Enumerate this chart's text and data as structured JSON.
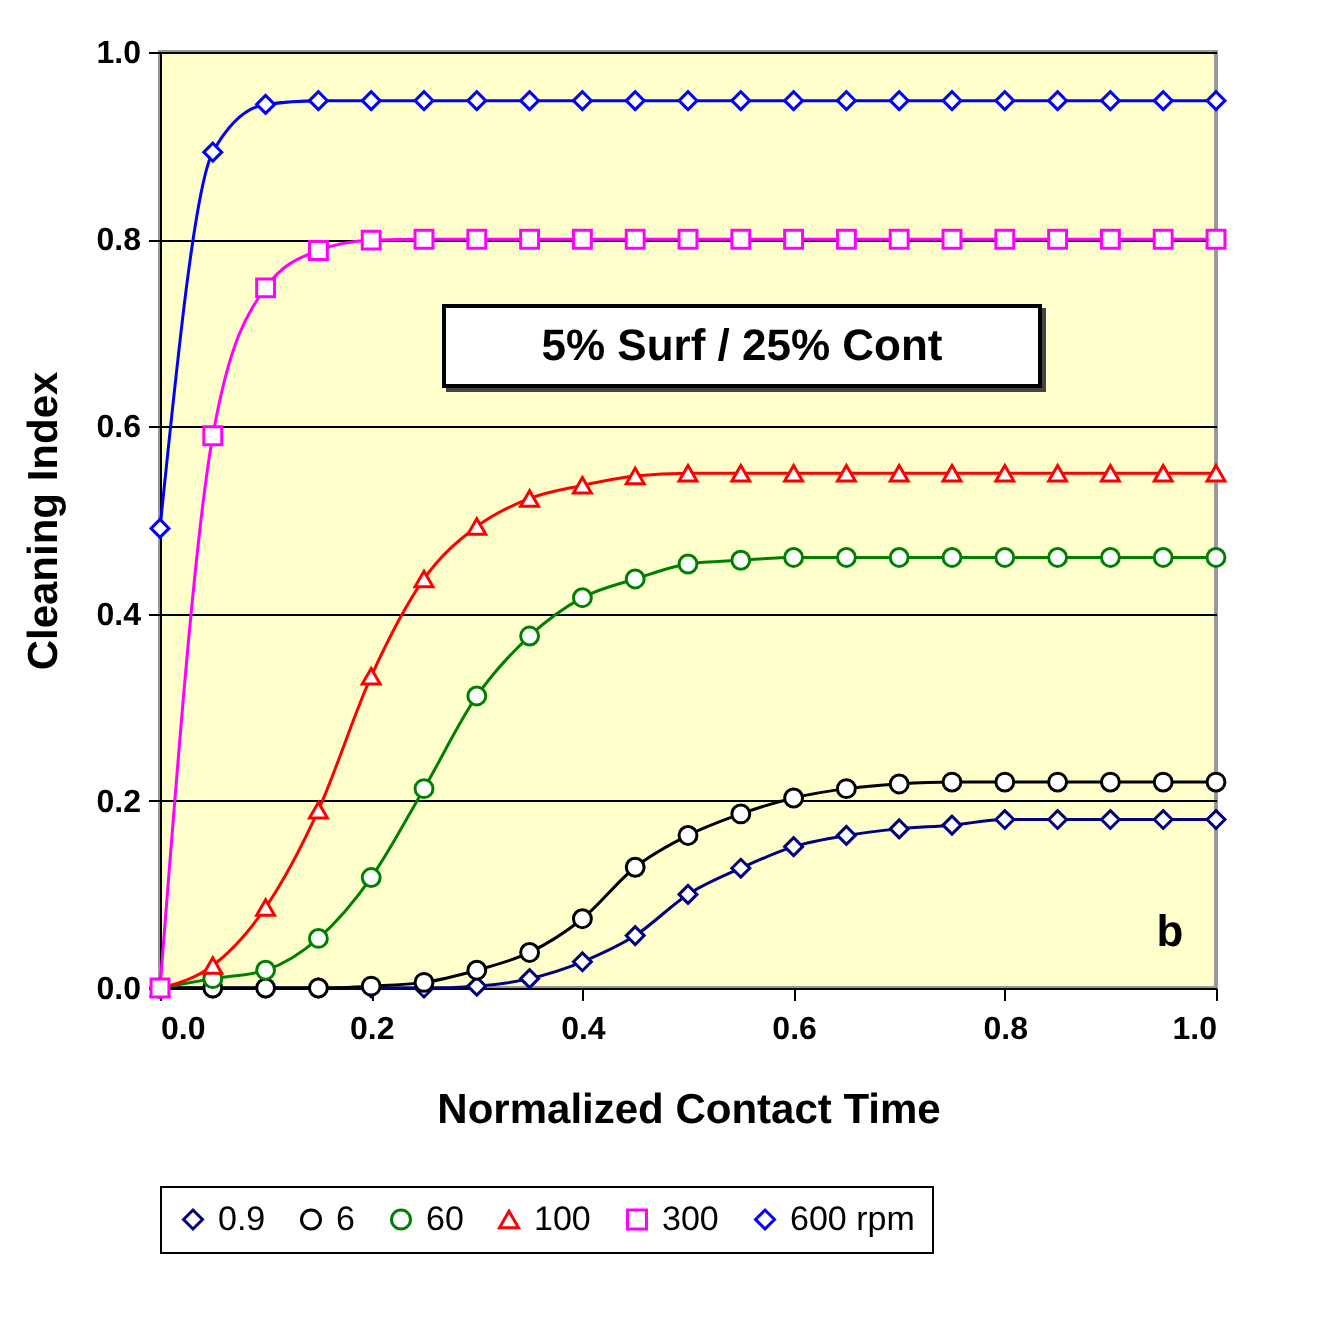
{
  "chart_data": {
    "type": "line",
    "xlabel": "Normalized Contact Time",
    "ylabel": "Cleaning Index",
    "x": [
      0,
      0.05,
      0.1,
      0.15,
      0.2,
      0.25,
      0.3,
      0.35,
      0.4,
      0.45,
      0.5,
      0.55,
      0.6,
      0.65,
      0.7,
      0.75,
      0.8,
      0.85,
      0.9,
      0.95,
      1.0
    ],
    "series": [
      {
        "name": "0.9",
        "color": "#000080",
        "marker": "diamond",
        "values": [
          0,
          0,
          0,
          0,
          0,
          0,
          0.002,
          0.01,
          0.028,
          0.056,
          0.1,
          0.128,
          0.151,
          0.163,
          0.17,
          0.174,
          0.18,
          0.18,
          0.18,
          0.18,
          0.18
        ]
      },
      {
        "name": "6",
        "color": "#000000",
        "marker": "circle",
        "values": [
          0,
          0,
          0,
          0,
          0.002,
          0.006,
          0.019,
          0.038,
          0.074,
          0.129,
          0.163,
          0.186,
          0.203,
          0.213,
          0.218,
          0.22,
          0.22,
          0.22,
          0.22,
          0.22,
          0.22
        ]
      },
      {
        "name": "60",
        "color": "#008000",
        "marker": "circle",
        "values": [
          0,
          0.01,
          0.019,
          0.053,
          0.118,
          0.213,
          0.312,
          0.376,
          0.417,
          0.437,
          0.453,
          0.457,
          0.46,
          0.46,
          0.46,
          0.46,
          0.46,
          0.46,
          0.46,
          0.46,
          0.46
        ]
      },
      {
        "name": "100",
        "color": "#ff0000",
        "marker": "triangle",
        "values": [
          0,
          0.024,
          0.086,
          0.19,
          0.333,
          0.437,
          0.493,
          0.523,
          0.537,
          0.547,
          0.55,
          0.55,
          0.55,
          0.55,
          0.55,
          0.55,
          0.55,
          0.55,
          0.55,
          0.55,
          0.55
        ]
      },
      {
        "name": "300",
        "color": "#ff00ff",
        "marker": "square",
        "values": [
          0,
          0.59,
          0.748,
          0.788,
          0.799,
          0.8,
          0.8,
          0.8,
          0.8,
          0.8,
          0.8,
          0.8,
          0.8,
          0.8,
          0.8,
          0.8,
          0.8,
          0.8,
          0.8,
          0.8,
          0.8
        ]
      },
      {
        "name": "600 rpm",
        "color": "#0000ff",
        "marker": "diamond",
        "values": [
          0.491,
          0.893,
          0.944,
          0.948,
          0.948,
          0.948,
          0.948,
          0.948,
          0.948,
          0.948,
          0.948,
          0.948,
          0.948,
          0.948,
          0.948,
          0.948,
          0.948,
          0.948,
          0.948,
          0.948,
          0.948
        ]
      }
    ],
    "xlim": [
      0,
      1.0
    ],
    "ylim": [
      0,
      1.0
    ],
    "xticks": [
      {
        "value": 0,
        "label": "0.0"
      },
      {
        "value": 0.2,
        "label": "0.2"
      },
      {
        "value": 0.4,
        "label": "0.4"
      },
      {
        "value": 0.6,
        "label": "0.6"
      },
      {
        "value": 0.8,
        "label": "0.8"
      },
      {
        "value": 1.0,
        "label": "1.0"
      }
    ],
    "yticks": [
      {
        "value": 0,
        "label": "0.0"
      },
      {
        "value": 0.2,
        "label": "0.2"
      },
      {
        "value": 0.4,
        "label": "0.4"
      },
      {
        "value": 0.6,
        "label": "0.6"
      },
      {
        "value": 0.8,
        "label": "0.8"
      },
      {
        "value": 1.0,
        "label": "1.0"
      }
    ],
    "grid": "y",
    "legend": "bottom",
    "annotations": [
      "5% Surf / 25% Cont",
      "b"
    ]
  }
}
